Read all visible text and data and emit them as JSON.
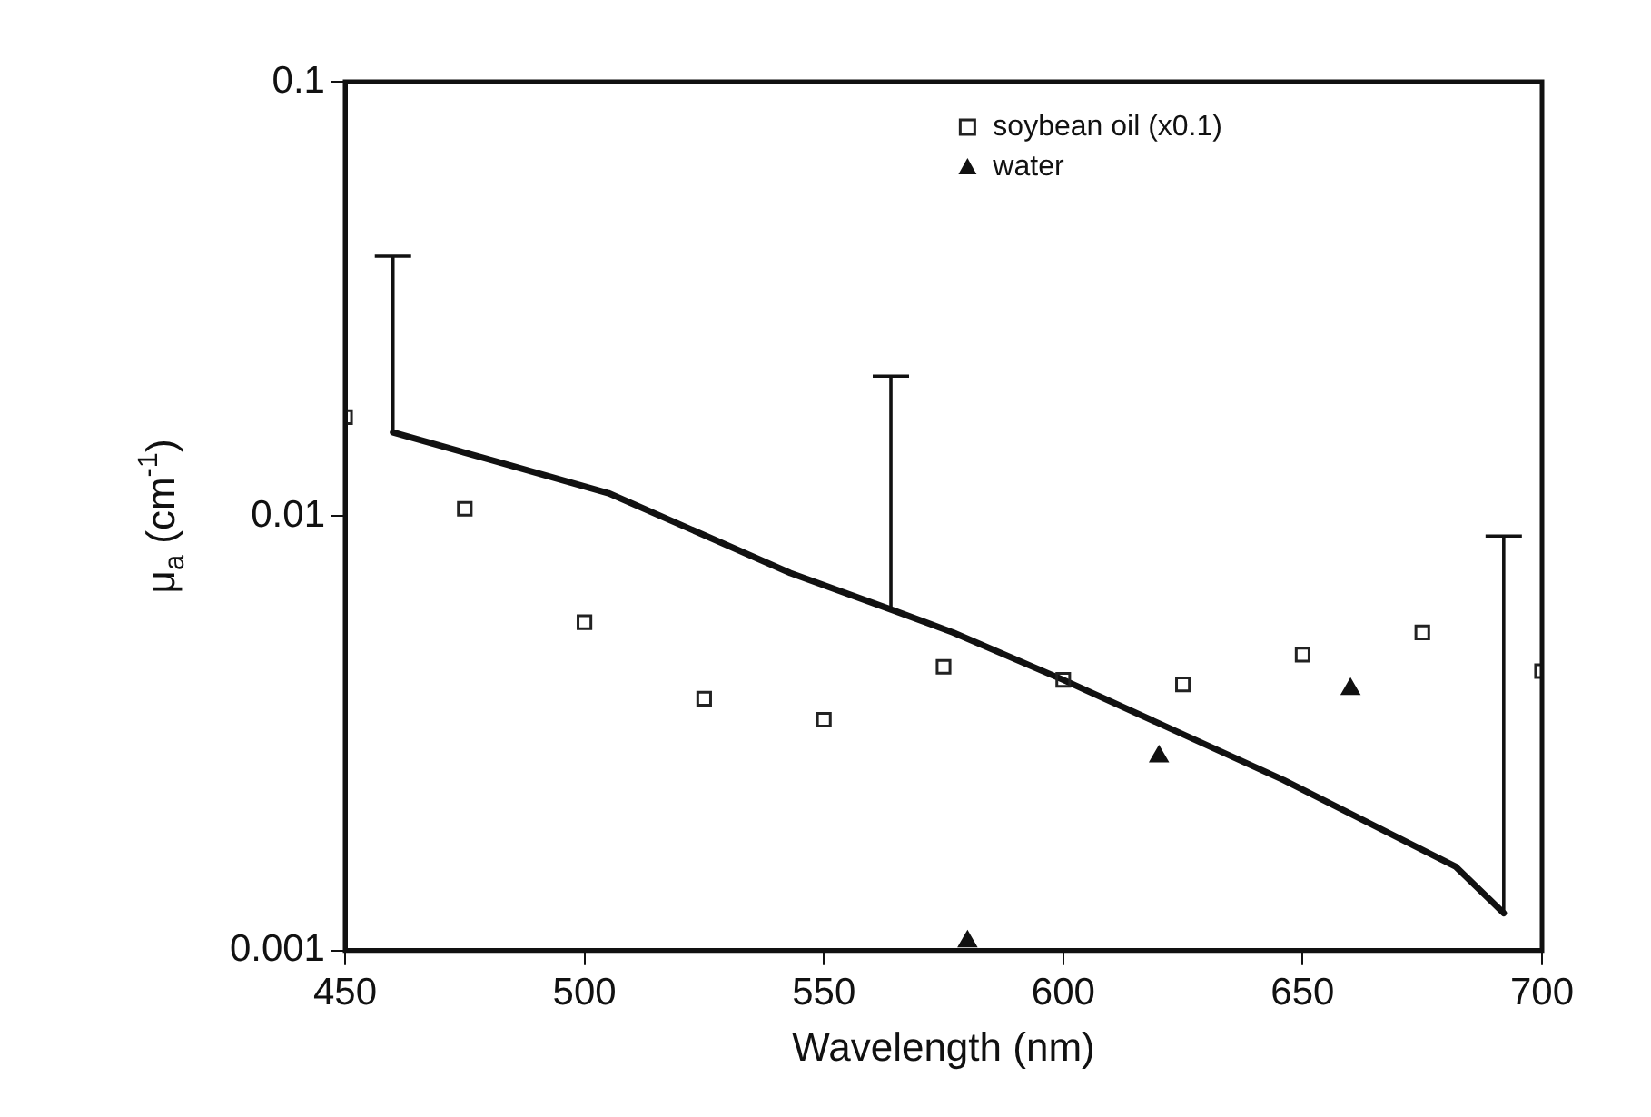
{
  "chart_data": {
    "type": "scatter",
    "xlabel": "Wavelength (nm)",
    "ylabel": "μ$_{a}$ (cm$^{-1}$)",
    "xlim": [
      450,
      700
    ],
    "xticks": [
      450,
      500,
      550,
      600,
      650,
      700
    ],
    "ylim": [
      0.001,
      0.1
    ],
    "yticks": [
      0.001,
      0.01,
      0.1
    ],
    "log": "y",
    "grid": false,
    "legend": "top right",
    "series": [
      {
        "name": "soybean oil (x0.1)",
        "marker": "square",
        "color": "#222222",
        "x": [
          450,
          475,
          500,
          525,
          550,
          575,
          600,
          625,
          650,
          675,
          700
        ],
        "values": [
          0.0169,
          0.0104,
          0.0057,
          0.0038,
          0.0034,
          0.0045,
          0.0042,
          0.0041,
          0.0048,
          0.0054,
          0.0044
        ]
      },
      {
        "type": "line",
        "marker": "none",
        "color": "#111111",
        "x": [
          460,
          505,
          543,
          564,
          577,
          600,
          646,
          682,
          692
        ],
        "values": [
          0.0156,
          0.0113,
          0.0074,
          0.0061,
          0.0054,
          0.0042,
          0.00247,
          0.00156,
          0.00122
        ],
        "errors": [
          [
            0.0156,
            0.0397
          ],
          null,
          null,
          [
            0.0061,
            0.021
          ],
          null,
          null,
          null,
          null,
          [
            0.00122,
            0.009
          ]
        ]
      },
      {
        "name": "water",
        "marker": "triangle",
        "color": "#111111",
        "x": [
          580,
          620,
          660
        ],
        "values": [
          0.00105,
          0.0028,
          0.004
        ]
      }
    ]
  }
}
